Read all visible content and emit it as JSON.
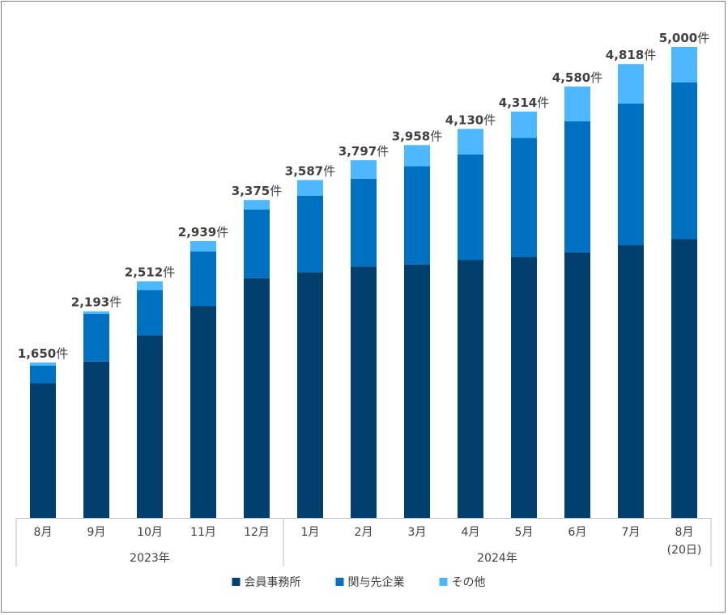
{
  "chart_data": {
    "type": "bar",
    "stacked": true,
    "title": "",
    "xlabel": "",
    "ylabel": "",
    "ylim": [
      0,
      5000
    ],
    "grid": false,
    "legend_position": "bottom",
    "categories": [
      "8月",
      "9月",
      "10月",
      "11月",
      "12月",
      "1月",
      "2月",
      "3月",
      "4月",
      "5月",
      "6月",
      "7月",
      "8月(20日)"
    ],
    "category_lines": [
      [
        "8月"
      ],
      [
        "9月"
      ],
      [
        "10月"
      ],
      [
        "11月"
      ],
      [
        "12月"
      ],
      [
        "1月"
      ],
      [
        "2月"
      ],
      [
        "3月"
      ],
      [
        "4月"
      ],
      [
        "5月"
      ],
      [
        "6月"
      ],
      [
        "7月"
      ],
      [
        "8月",
        "(20日)"
      ]
    ],
    "groups": [
      {
        "label": "2023年",
        "start": 0,
        "end": 4
      },
      {
        "label": "2024年",
        "start": 5,
        "end": 12
      }
    ],
    "series": [
      {
        "name": "会員事務所",
        "color": "#003F6E",
        "values": [
          1430,
          1660,
          1940,
          2250,
          2545,
          2610,
          2670,
          2690,
          2740,
          2770,
          2820,
          2895,
          2960
        ]
      },
      {
        "name": "関与先企業",
        "color": "#0070C0",
        "values": [
          185,
          505,
          480,
          580,
          730,
          810,
          930,
          1045,
          1120,
          1265,
          1390,
          1505,
          1665
        ]
      },
      {
        "name": "その他",
        "color": "#4DB8FF",
        "values": [
          35,
          28,
          92,
          109,
          100,
          167,
          197,
          223,
          270,
          279,
          370,
          418,
          375
        ]
      }
    ],
    "totals": [
      1650,
      2193,
      2512,
      2939,
      3375,
      3587,
      3797,
      3958,
      4130,
      4314,
      4580,
      4818,
      5000
    ],
    "total_labels": [
      "1,650",
      "2,193",
      "2,512",
      "2,939",
      "3,375",
      "3,587",
      "3,797",
      "3,958",
      "4,130",
      "4,314",
      "4,580",
      "4,818",
      "5,000"
    ],
    "total_unit": "件"
  }
}
